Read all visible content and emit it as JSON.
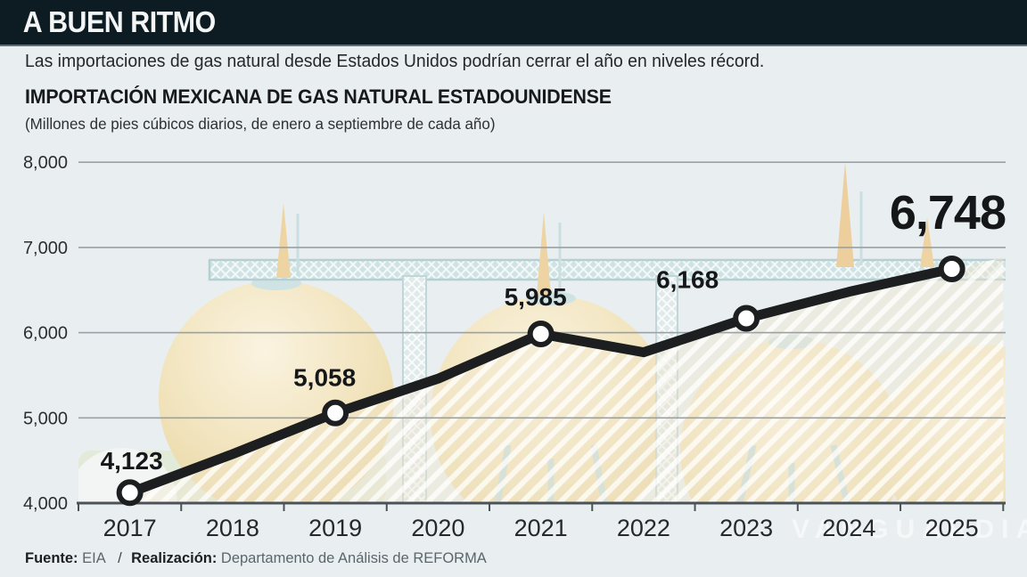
{
  "header": {
    "title": "A BUEN RITMO"
  },
  "intro": "Las importaciones de gas natural desde Estados Unidos podrían cerrar el año en niveles récord.",
  "chart": {
    "title": "IMPORTACIÓN MEXICANA DE GAS NATURAL ESTADOUNIDENSE",
    "subtitle": "(Millones de pies cúbicos diarios, de enero a septiembre de cada año)"
  },
  "chart_data": {
    "type": "line",
    "title": "Importación mexicana de gas natural estadounidense",
    "xlabel": "",
    "ylabel": "Millones de pies cúbicos diarios (enero a septiembre de cada año)",
    "x": [
      "2017",
      "2018",
      "2019",
      "2020",
      "2021",
      "2022",
      "2023",
      "2024",
      "2025"
    ],
    "values": [
      4123,
      4575,
      5058,
      5460,
      5985,
      5770,
      6168,
      6480,
      6748
    ],
    "estimated_indices": [
      1,
      3,
      5,
      7
    ],
    "marker_indices": [
      0,
      2,
      4,
      6,
      8
    ],
    "data_labels": [
      {
        "index": 0,
        "text": "4,123"
      },
      {
        "index": 2,
        "text": "5,058"
      },
      {
        "index": 4,
        "text": "5,985"
      },
      {
        "index": 6,
        "text": "6,168"
      },
      {
        "index": 8,
        "text": "6,748",
        "emphasis": true
      }
    ],
    "ylim": [
      4000,
      8000
    ],
    "yticks": [
      {
        "value": 4000,
        "label": "4,000"
      },
      {
        "value": 5000,
        "label": "5,000"
      },
      {
        "value": 6000,
        "label": "6,000"
      },
      {
        "value": 7000,
        "label": "7,000"
      },
      {
        "value": 8000,
        "label": "8,000"
      }
    ],
    "grid": "horizontal",
    "legend": "none"
  },
  "footer": {
    "source_label": "Fuente:",
    "source_value": "EIA",
    "divider": "/",
    "realization_label": "Realización:",
    "realization_value": "Departamento de Análisis de REFORMA"
  },
  "watermark": "VANGUARDIA",
  "colors": {
    "header_bg": "#0d1c23",
    "page_bg": "#e9eef0",
    "line": "#1d1e20",
    "marker_fill": "#ffffff",
    "gridline": "#99a1a5",
    "axis": "#4a5357",
    "tank": "#f0e2ba",
    "structure": "#cfe2e4",
    "hatch_tint": "#efe6cc"
  }
}
